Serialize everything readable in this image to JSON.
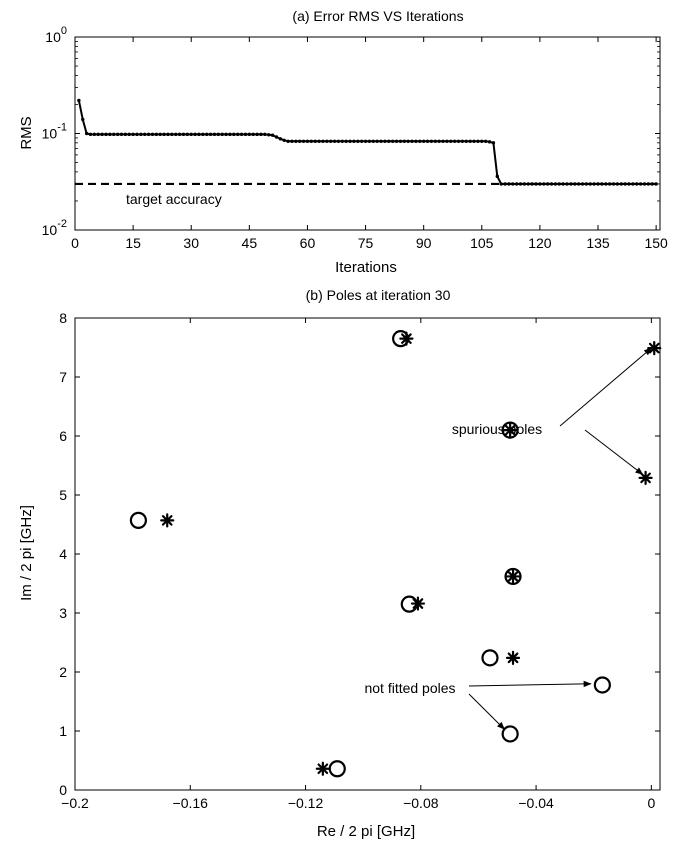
{
  "chart_data": [
    {
      "type": "line",
      "title": "(a)   Error RMS VS Iterations",
      "xlabel": "Iterations",
      "ylabel": "RMS",
      "xlim": [
        0,
        151
      ],
      "ylim": [
        0.01,
        1
      ],
      "yscale": "log",
      "xticks": [
        "0",
        "15",
        "30",
        "45",
        "60",
        "75",
        "90",
        "105",
        "120",
        "135",
        "150"
      ],
      "yticks": [
        {
          "base": "10",
          "exp": "0"
        },
        {
          "base": "10",
          "exp": "-1"
        },
        {
          "base": "10",
          "exp": "-2"
        }
      ],
      "grid": false,
      "series": [
        {
          "x": [
            1,
            2,
            3,
            4,
            5,
            6,
            7,
            8,
            9,
            10,
            11,
            12,
            13,
            14,
            15,
            16,
            17,
            18,
            19,
            20,
            21,
            22,
            23,
            24,
            25,
            26,
            27,
            28,
            29,
            30,
            31,
            32,
            33,
            34,
            35,
            36,
            37,
            38,
            39,
            40,
            41,
            42,
            43,
            44,
            45,
            46,
            47,
            48,
            49,
            50,
            51,
            52,
            53,
            54,
            55,
            56,
            57,
            58,
            59,
            60,
            61,
            62,
            63,
            64,
            65,
            66,
            67,
            68,
            69,
            70,
            71,
            72,
            73,
            74,
            75,
            76,
            77,
            78,
            79,
            80,
            81,
            82,
            83,
            84,
            85,
            86,
            87,
            88,
            89,
            90,
            91,
            92,
            93,
            94,
            95,
            96,
            97,
            98,
            99,
            100,
            101,
            102,
            103,
            104,
            105,
            106,
            107,
            108,
            109,
            110,
            111,
            112,
            113,
            114,
            115,
            116,
            117,
            118,
            119,
            120,
            121,
            122,
            123,
            124,
            125,
            126,
            127,
            128,
            129,
            130,
            131,
            132,
            133,
            134,
            135,
            136,
            137,
            138,
            139,
            140,
            141,
            142,
            143,
            144,
            145,
            146,
            147,
            148,
            149,
            150
          ],
          "y": [
            0.22,
            0.14,
            0.1,
            0.098,
            0.098,
            0.098,
            0.098,
            0.098,
            0.098,
            0.098,
            0.098,
            0.098,
            0.098,
            0.098,
            0.098,
            0.098,
            0.098,
            0.098,
            0.098,
            0.098,
            0.098,
            0.098,
            0.098,
            0.098,
            0.098,
            0.098,
            0.098,
            0.098,
            0.098,
            0.098,
            0.098,
            0.098,
            0.098,
            0.098,
            0.098,
            0.098,
            0.098,
            0.098,
            0.098,
            0.098,
            0.098,
            0.098,
            0.098,
            0.098,
            0.098,
            0.098,
            0.098,
            0.098,
            0.098,
            0.097,
            0.096,
            0.092,
            0.088,
            0.085,
            0.083,
            0.083,
            0.083,
            0.083,
            0.083,
            0.083,
            0.083,
            0.083,
            0.083,
            0.083,
            0.083,
            0.083,
            0.083,
            0.083,
            0.083,
            0.083,
            0.083,
            0.083,
            0.083,
            0.083,
            0.083,
            0.083,
            0.083,
            0.083,
            0.083,
            0.083,
            0.083,
            0.083,
            0.083,
            0.083,
            0.083,
            0.083,
            0.083,
            0.083,
            0.083,
            0.083,
            0.083,
            0.083,
            0.083,
            0.083,
            0.083,
            0.083,
            0.083,
            0.083,
            0.083,
            0.083,
            0.083,
            0.083,
            0.083,
            0.083,
            0.083,
            0.083,
            0.082,
            0.08,
            0.036,
            0.03,
            0.03,
            0.03,
            0.03,
            0.03,
            0.03,
            0.03,
            0.03,
            0.03,
            0.03,
            0.03,
            0.03,
            0.03,
            0.03,
            0.03,
            0.03,
            0.03,
            0.03,
            0.03,
            0.03,
            0.03,
            0.03,
            0.03,
            0.03,
            0.03,
            0.03,
            0.03,
            0.03,
            0.03,
            0.03,
            0.03,
            0.03,
            0.03,
            0.03,
            0.03,
            0.03,
            0.03,
            0.03,
            0.03,
            0.03,
            0.03
          ]
        }
      ],
      "reference_line": {
        "y": 0.03,
        "style": "dashed",
        "label": "target accuracy"
      }
    },
    {
      "type": "scatter",
      "title": "(b)   Poles at iteration 30",
      "xlabel": "Re / 2 pi  [GHz]",
      "ylabel": "Im / 2 pi  [GHz]",
      "xlim": [
        -0.2,
        0.003
      ],
      "ylim": [
        0,
        8
      ],
      "xticks": [
        {
          "v": -0.2,
          "t": "−0.2"
        },
        {
          "v": -0.16,
          "t": "−0.16"
        },
        {
          "v": -0.12,
          "t": "−0.12"
        },
        {
          "v": -0.08,
          "t": "−0.08"
        },
        {
          "v": -0.04,
          "t": "−0.04"
        },
        {
          "v": 0,
          "t": "0"
        }
      ],
      "yticks": [
        "0",
        "1",
        "2",
        "3",
        "4",
        "5",
        "6",
        "7",
        "8"
      ],
      "grid": false,
      "series": [
        {
          "marker": "circle",
          "points": [
            [
              -0.178,
              4.57
            ],
            [
              -0.087,
              7.65
            ],
            [
              -0.049,
              6.1
            ],
            [
              -0.048,
              3.62
            ],
            [
              -0.084,
              3.15
            ],
            [
              -0.056,
              2.24
            ],
            [
              -0.017,
              1.78
            ],
            [
              -0.049,
              0.95
            ],
            [
              -0.109,
              0.36
            ]
          ]
        },
        {
          "marker": "asterisk",
          "points": [
            [
              -0.168,
              4.57
            ],
            [
              -0.085,
              7.65
            ],
            [
              -0.049,
              6.1
            ],
            [
              -0.048,
              3.62
            ],
            [
              -0.081,
              3.16
            ],
            [
              -0.048,
              2.24
            ],
            [
              0.001,
              7.49
            ],
            [
              -0.002,
              5.29
            ],
            [
              -0.114,
              0.36
            ]
          ]
        }
      ],
      "annotations": [
        {
          "text": "spurious poles",
          "arrows_to": [
            [
              0.0,
              7.49
            ],
            [
              -0.003,
              5.35
            ]
          ]
        },
        {
          "text": "not fitted poles",
          "arrows_to": [
            [
              -0.021,
              1.8
            ],
            [
              -0.051,
              1.03
            ]
          ]
        }
      ]
    }
  ]
}
